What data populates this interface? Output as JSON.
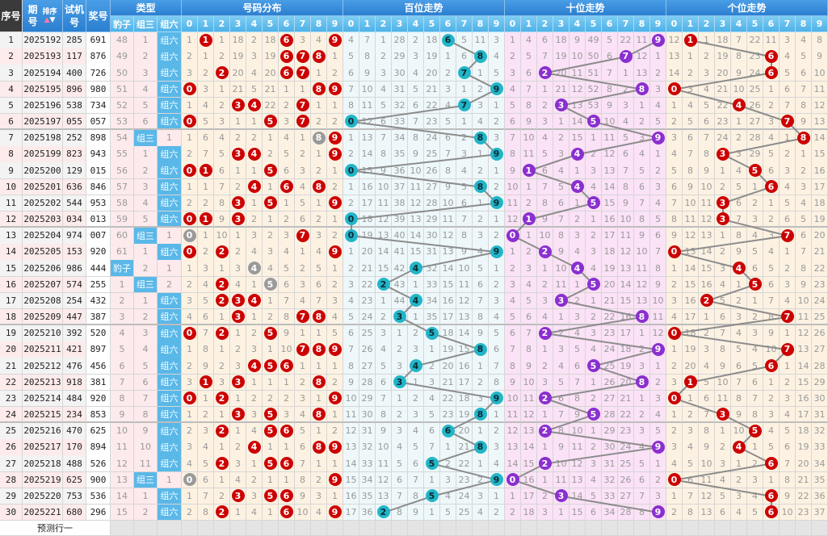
{
  "header": {
    "seq": "序号",
    "period": "期号",
    "sort": "排序",
    "test": "试机号",
    "award": "奖号",
    "type": "类型",
    "type_cols": [
      "豹子",
      "组三",
      "组六"
    ],
    "sections": [
      "号码分布",
      "百位走势",
      "十位走势",
      "个位走势"
    ],
    "digits": [
      "0",
      "1",
      "2",
      "3",
      "4",
      "5",
      "6",
      "7",
      "8",
      "9"
    ]
  },
  "rows": [
    {
      "seq": "1",
      "period": "2025192",
      "test": "285",
      "award": "691"
    },
    {
      "seq": "2",
      "period": "2025193",
      "test": "117",
      "award": "876"
    },
    {
      "seq": "3",
      "period": "2025194",
      "test": "400",
      "award": "726"
    },
    {
      "seq": "4",
      "period": "2025195",
      "test": "896",
      "award": "980"
    },
    {
      "seq": "5",
      "period": "2025196",
      "test": "538",
      "award": "734"
    },
    {
      "seq": "6",
      "period": "2025197",
      "test": "055",
      "award": "057"
    },
    {
      "seq": "7",
      "period": "2025198",
      "test": "252",
      "award": "898"
    },
    {
      "seq": "8",
      "period": "2025199",
      "test": "823",
      "award": "943"
    },
    {
      "seq": "9",
      "period": "2025200",
      "test": "129",
      "award": "015"
    },
    {
      "seq": "10",
      "period": "2025201",
      "test": "636",
      "award": "846"
    },
    {
      "seq": "11",
      "period": "2025202",
      "test": "544",
      "award": "953"
    },
    {
      "seq": "12",
      "period": "2025203",
      "test": "034",
      "award": "013"
    },
    {
      "seq": "13",
      "period": "2025204",
      "test": "974",
      "award": "007"
    },
    {
      "seq": "14",
      "period": "2025205",
      "test": "153",
      "award": "920"
    },
    {
      "seq": "15",
      "period": "2025206",
      "test": "986",
      "award": "444"
    },
    {
      "seq": "16",
      "period": "2025207",
      "test": "574",
      "award": "255"
    },
    {
      "seq": "17",
      "period": "2025208",
      "test": "254",
      "award": "432"
    },
    {
      "seq": "18",
      "period": "2025209",
      "test": "447",
      "award": "387"
    },
    {
      "seq": "19",
      "period": "2025210",
      "test": "392",
      "award": "520"
    },
    {
      "seq": "20",
      "period": "2025211",
      "test": "421",
      "award": "897"
    },
    {
      "seq": "21",
      "period": "2025212",
      "test": "476",
      "award": "456"
    },
    {
      "seq": "22",
      "period": "2025213",
      "test": "918",
      "award": "381"
    },
    {
      "seq": "23",
      "period": "2025214",
      "test": "484",
      "award": "920"
    },
    {
      "seq": "24",
      "period": "2025215",
      "test": "234",
      "award": "853"
    },
    {
      "seq": "25",
      "period": "2025216",
      "test": "470",
      "award": "625"
    },
    {
      "seq": "26",
      "period": "2025217",
      "test": "170",
      "award": "894"
    },
    {
      "seq": "27",
      "period": "2025218",
      "test": "488",
      "award": "526"
    },
    {
      "seq": "28",
      "period": "2025219",
      "test": "625",
      "award": "900"
    },
    {
      "seq": "29",
      "period": "2025220",
      "test": "753",
      "award": "536"
    },
    {
      "seq": "30",
      "period": "2025221",
      "test": "680",
      "award": "296"
    }
  ],
  "first_row_omissions": {
    "type": [
      48,
      1,
      0
    ],
    "distribution": [
      1,
      0,
      1,
      18,
      2,
      18,
      0,
      3,
      4,
      0
    ],
    "hundreds": [
      4,
      7,
      1,
      28,
      2,
      18,
      0,
      5,
      11,
      3
    ],
    "tens": [
      1,
      4,
      6,
      18,
      9,
      49,
      5,
      22,
      11,
      0
    ],
    "units": [
      12,
      0,
      1,
      18,
      7,
      22,
      11,
      3,
      4,
      8
    ]
  },
  "footer": {
    "forecast": "预测行一"
  },
  "colors": {
    "distribution_ball": "#cc0000",
    "repeat_ball": "#9a9a9a",
    "hundreds_ball": "#22b5c8",
    "tens_ball": "#8a2fd0",
    "units_ball": "#cc0000",
    "line": "#8c8c8c",
    "distribution_bg": "#fdf2e2",
    "hundreds_bg": "#eef8fb",
    "tens_bg": "#fbe2f6",
    "units_bg": "#fdf2e2",
    "type_bg": "#fdeaec"
  }
}
